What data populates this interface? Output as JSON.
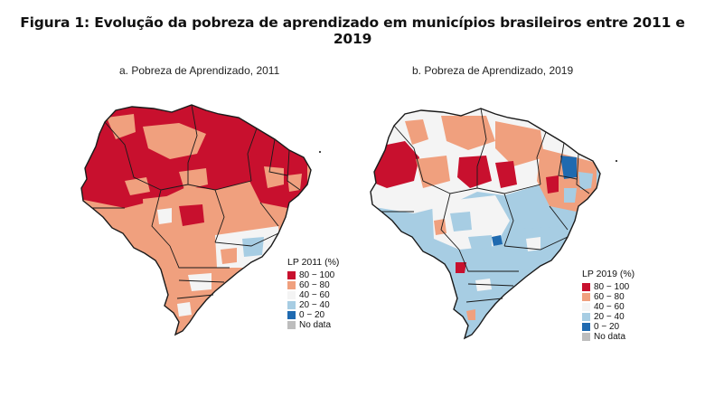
{
  "figure_title": "Figura 1: Evolução da pobreza de aprendizado em municípios brasileiros entre 2011 e 2019",
  "colors": {
    "c80_100": "#c8102e",
    "c60_80": "#f0a07e",
    "c40_60": "#f4f4f4",
    "c20_40": "#a7cde3",
    "c0_20": "#1f6ab0",
    "no_data": "#bdbdbd",
    "border": "#1a1a1a"
  },
  "panels": [
    {
      "title": "a.  Pobreza de Aprendizado, 2011",
      "legend": {
        "title": "LP 2011 (%)",
        "items": [
          {
            "label": "80 − 100",
            "color": "#c8102e"
          },
          {
            "label": "60 − 80",
            "color": "#f0a07e"
          },
          {
            "label": "40 − 60",
            "color": "#f4f4f4"
          },
          {
            "label": "20 − 40",
            "color": "#a7cde3"
          },
          {
            "label": "0 − 20",
            "color": "#1f6ab0"
          },
          {
            "label": "No data",
            "color": "#bdbdbd"
          }
        ]
      }
    },
    {
      "title": "b. Pobreza de Aprendizado, 2019",
      "legend": {
        "title": "LP 2019 (%)",
        "items": [
          {
            "label": "80 − 100",
            "color": "#c8102e"
          },
          {
            "label": "60 − 80",
            "color": "#f0a07e"
          },
          {
            "label": "40 − 60",
            "color": "#f4f4f4"
          },
          {
            "label": "20 − 40",
            "color": "#a7cde3"
          },
          {
            "label": "0 − 20",
            "color": "#1f6ab0"
          },
          {
            "label": "No data",
            "color": "#bdbdbd"
          }
        ]
      }
    }
  ]
}
